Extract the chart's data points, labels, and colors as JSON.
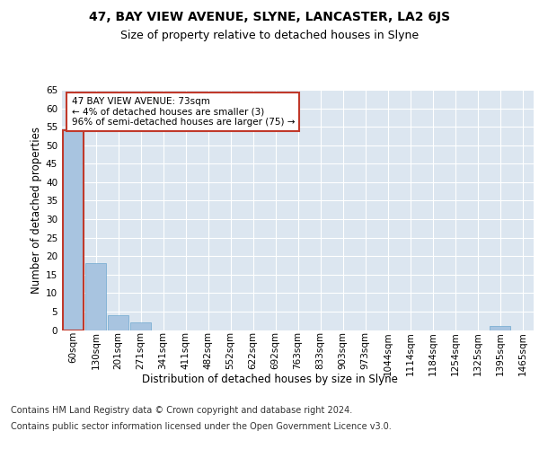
{
  "title": "47, BAY VIEW AVENUE, SLYNE, LANCASTER, LA2 6JS",
  "subtitle": "Size of property relative to detached houses in Slyne",
  "xlabel": "Distribution of detached houses by size in Slyne",
  "ylabel": "Number of detached properties",
  "categories": [
    "60sqm",
    "130sqm",
    "201sqm",
    "271sqm",
    "341sqm",
    "411sqm",
    "482sqm",
    "552sqm",
    "622sqm",
    "692sqm",
    "763sqm",
    "833sqm",
    "903sqm",
    "973sqm",
    "1044sqm",
    "1114sqm",
    "1184sqm",
    "1254sqm",
    "1325sqm",
    "1395sqm",
    "1465sqm"
  ],
  "values": [
    54,
    18,
    4,
    2,
    0,
    0,
    0,
    0,
    0,
    0,
    0,
    0,
    0,
    0,
    0,
    0,
    0,
    0,
    0,
    1,
    0
  ],
  "bar_color": "#a8c4e0",
  "bar_edge_color": "#6fa8d0",
  "highlight_color": "#c0392b",
  "highlight_bar_index": 0,
  "annotation_text": "47 BAY VIEW AVENUE: 73sqm\n← 4% of detached houses are smaller (3)\n96% of semi-detached houses are larger (75) →",
  "annotation_box_color": "#ffffff",
  "annotation_box_edge": "#c0392b",
  "ylim": [
    0,
    65
  ],
  "background_color": "#dce6f0",
  "footer_line1": "Contains HM Land Registry data © Crown copyright and database right 2024.",
  "footer_line2": "Contains public sector information licensed under the Open Government Licence v3.0.",
  "title_fontsize": 10,
  "subtitle_fontsize": 9,
  "xlabel_fontsize": 8.5,
  "ylabel_fontsize": 8.5,
  "tick_fontsize": 7.5,
  "footer_fontsize": 7,
  "annotation_fontsize": 7.5
}
